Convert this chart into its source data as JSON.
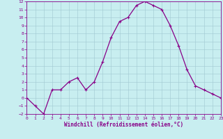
{
  "x": [
    0,
    1,
    2,
    3,
    4,
    5,
    6,
    7,
    8,
    9,
    10,
    11,
    12,
    13,
    14,
    15,
    16,
    17,
    18,
    19,
    20,
    21,
    22,
    23
  ],
  "y": [
    0,
    -1,
    -2,
    1,
    1,
    2,
    2.5,
    1,
    2,
    4.5,
    7.5,
    9.5,
    10,
    11.5,
    12,
    11.5,
    11,
    9,
    6.5,
    3.5,
    1.5,
    1,
    0.5,
    0
  ],
  "line_color": "#880088",
  "marker": "+",
  "marker_size": 3,
  "marker_linewidth": 0.8,
  "bg_color": "#c8eef0",
  "grid_color": "#a0c8d0",
  "xlabel": "Windchill (Refroidissement éolien,°C)",
  "xlabel_color": "#880088",
  "ylim": [
    -2,
    12
  ],
  "yticks": [
    -2,
    -1,
    0,
    1,
    2,
    3,
    4,
    5,
    6,
    7,
    8,
    9,
    10,
    11,
    12
  ],
  "xlim": [
    0,
    23
  ],
  "xticks": [
    0,
    1,
    2,
    3,
    4,
    5,
    6,
    7,
    8,
    9,
    10,
    11,
    12,
    13,
    14,
    15,
    16,
    17,
    18,
    19,
    20,
    21,
    22,
    23
  ],
  "tick_color": "#880088",
  "tick_fontsize": 4.5,
  "xlabel_fontsize": 5.5,
  "spine_color": "#880088",
  "linewidth": 0.9
}
